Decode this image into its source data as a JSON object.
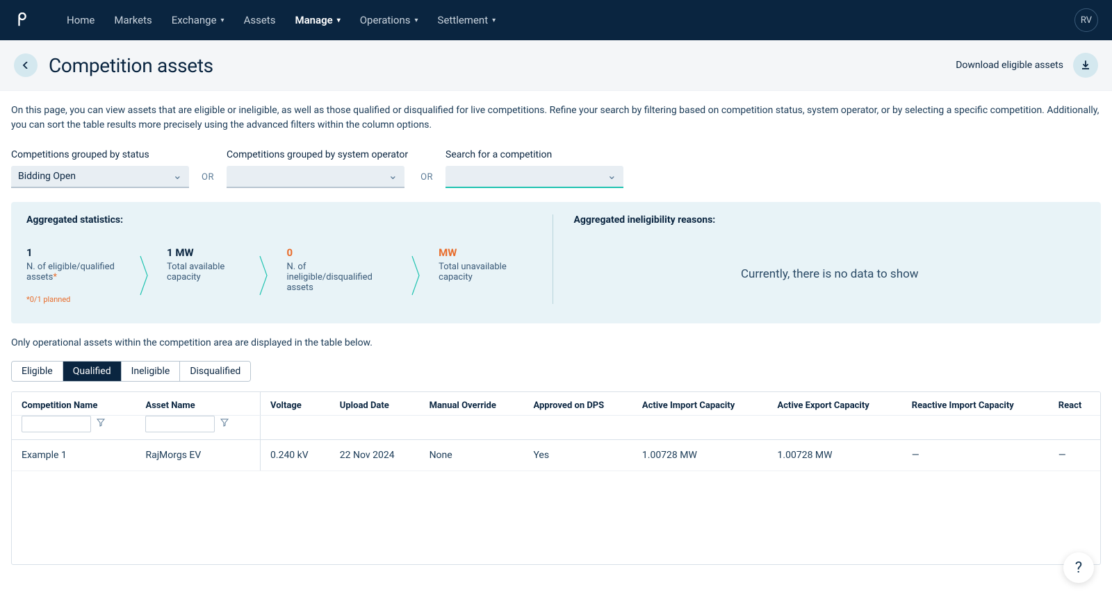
{
  "nav": {
    "items": [
      {
        "label": "Home",
        "has_chev": false,
        "active": false
      },
      {
        "label": "Markets",
        "has_chev": false,
        "active": false
      },
      {
        "label": "Exchange",
        "has_chev": true,
        "active": false
      },
      {
        "label": "Assets",
        "has_chev": false,
        "active": false
      },
      {
        "label": "Manage",
        "has_chev": true,
        "active": true
      },
      {
        "label": "Operations",
        "has_chev": true,
        "active": false
      },
      {
        "label": "Settlement",
        "has_chev": true,
        "active": false
      }
    ],
    "user_initials": "RV"
  },
  "header": {
    "title": "Competition assets",
    "download_label": "Download eligible assets"
  },
  "intro": "On this page, you can view assets that are eligible or ineligible, as well as those qualified or disqualified for live competitions. Refine your search by filtering based on competition status, system operator, or by selecting a specific competition. Additionally, you can sort the table results more precisely using the advanced filters within the column options.",
  "filters": {
    "status": {
      "label": "Competitions grouped by status",
      "value": "Bidding Open"
    },
    "operator": {
      "label": "Competitions grouped by system operator",
      "value": ""
    },
    "search": {
      "label": "Search for a competition",
      "value": ""
    },
    "or": "OR"
  },
  "stats": {
    "left_title": "Aggregated statistics:",
    "right_title": "Aggregated ineligibility reasons:",
    "items": [
      {
        "value": "1",
        "label": "N. of eligible/qualified assets",
        "has_asterisk": true,
        "warn": false,
        "footnote": "*0/1 planned"
      },
      {
        "value": "1 MW",
        "label": "Total available capacity",
        "has_asterisk": false,
        "warn": false,
        "footnote": ""
      },
      {
        "value": "0",
        "label": "N. of ineligible/disqualified assets",
        "has_asterisk": false,
        "warn": true,
        "footnote": ""
      },
      {
        "value": "MW",
        "label": "Total unavailable capacity",
        "has_asterisk": false,
        "warn": true,
        "footnote": ""
      }
    ],
    "no_data": "Currently, there is no data to show"
  },
  "table_note": "Only operational assets within the competition area are displayed in the table below.",
  "tabs": [
    {
      "label": "Eligible",
      "active": false
    },
    {
      "label": "Qualified",
      "active": true
    },
    {
      "label": "Ineligible",
      "active": false
    },
    {
      "label": "Disqualified",
      "active": false
    }
  ],
  "table": {
    "columns": [
      {
        "label": "Competition Name",
        "filter": true,
        "pinned": false
      },
      {
        "label": "Asset Name",
        "filter": true,
        "pinned": true
      },
      {
        "label": "Voltage",
        "filter": false,
        "pinned": false
      },
      {
        "label": "Upload Date",
        "filter": false,
        "pinned": false
      },
      {
        "label": "Manual Override",
        "filter": false,
        "pinned": false
      },
      {
        "label": "Approved on DPS",
        "filter": false,
        "pinned": false
      },
      {
        "label": "Active Import Capacity",
        "filter": false,
        "pinned": false
      },
      {
        "label": "Active Export Capacity",
        "filter": false,
        "pinned": false
      },
      {
        "label": "Reactive Import Capacity",
        "filter": false,
        "pinned": false
      },
      {
        "label": "React",
        "filter": false,
        "pinned": false
      }
    ],
    "rows": [
      [
        "Example 1",
        "RajMorgs EV",
        "0.240 kV",
        "22 Nov 2024",
        "None",
        "Yes",
        "1.00728 MW",
        "1.00728 MW",
        "—",
        "—"
      ]
    ]
  },
  "colors": {
    "nav_bg": "#0a2540",
    "panel_bg": "#e8f3f7",
    "accent": "#1fc3b0",
    "warn": "#e86c2b"
  }
}
